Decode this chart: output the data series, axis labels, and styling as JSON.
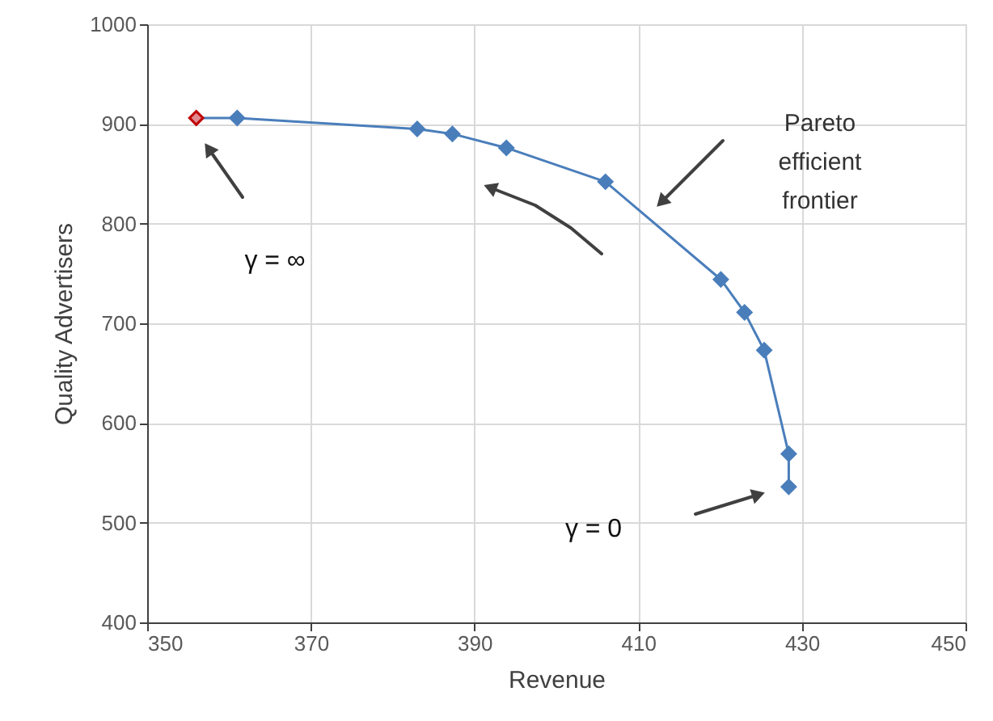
{
  "chart_data": {
    "type": "line",
    "xlabel": "Revenue",
    "ylabel": "Quality Advertisers",
    "series": [
      {
        "color": "#4a7ebb",
        "marker": "diamond",
        "x": [
          356,
          361,
          383,
          387.3,
          393.9,
          406,
          420.1,
          423,
          425.4,
          428.4,
          428.4
        ],
        "values": [
          906,
          906,
          895,
          890,
          876,
          842,
          744,
          711,
          673,
          569,
          536
        ],
        "colors": [
          "#e08a8f",
          "#4a7ebb",
          "#4a7ebb",
          "#4a7ebb",
          "#4a7ebb",
          "#4a7ebb",
          "#4a7ebb",
          "#4a7ebb",
          "#4a7ebb",
          "#4a7ebb",
          "#4a7ebb"
        ]
      }
    ],
    "xlim": [
      350,
      450
    ],
    "xticks": [
      350,
      370,
      390,
      410,
      430,
      450
    ],
    "ylim": [
      400,
      1000
    ],
    "yticks": [
      400,
      500,
      600,
      700,
      800,
      900,
      1000
    ],
    "grid": true,
    "annotations": [
      "γ = ∞",
      "Pareto efficient frontier",
      "γ = 0"
    ]
  }
}
